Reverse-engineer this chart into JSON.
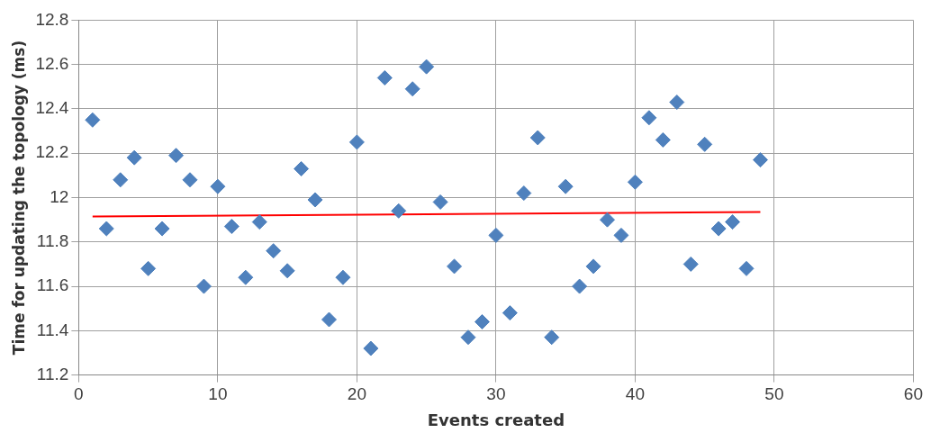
{
  "chart_data": {
    "type": "scatter",
    "xlabel": "Events created",
    "ylabel": "Time for updating the topology (ms)",
    "xlim": [
      0,
      60
    ],
    "xticks": [
      0,
      10,
      20,
      30,
      40,
      50,
      60
    ],
    "ylim": [
      11.2,
      12.8
    ],
    "yticks": [
      11.2,
      11.4,
      11.6,
      11.8,
      12,
      12.2,
      12.4,
      12.6,
      12.8
    ],
    "grid": true,
    "series": [
      {
        "marker": "diamond",
        "color": "#4f81bd",
        "x": [
          1,
          2,
          3,
          4,
          5,
          6,
          7,
          8,
          9,
          10,
          11,
          12,
          13,
          14,
          15,
          16,
          17,
          18,
          19,
          20,
          21,
          22,
          23,
          24,
          25,
          26,
          27,
          28,
          29,
          30,
          31,
          32,
          33,
          34,
          35,
          36,
          37,
          38,
          39,
          40,
          41,
          42,
          43,
          44,
          45,
          46,
          47,
          48,
          49
        ],
        "values": [
          12.35,
          11.86,
          12.08,
          12.18,
          11.68,
          11.86,
          12.19,
          12.08,
          11.6,
          12.05,
          11.87,
          11.64,
          11.89,
          11.76,
          11.67,
          12.13,
          11.99,
          11.45,
          11.64,
          12.25,
          11.32,
          12.54,
          11.94,
          12.49,
          12.59,
          11.98,
          11.69,
          11.37,
          11.44,
          11.83,
          11.48,
          12.02,
          12.27,
          11.37,
          12.05,
          11.6,
          11.69,
          11.9,
          11.83,
          12.07,
          12.36,
          12.26,
          12.43,
          11.7,
          12.24,
          11.86,
          11.89,
          11.68,
          12.17
        ]
      },
      {
        "type": "line",
        "marker": "none",
        "color": "#ff0000",
        "x": [
          1,
          49
        ],
        "values": [
          11.915,
          11.935
        ]
      }
    ]
  }
}
